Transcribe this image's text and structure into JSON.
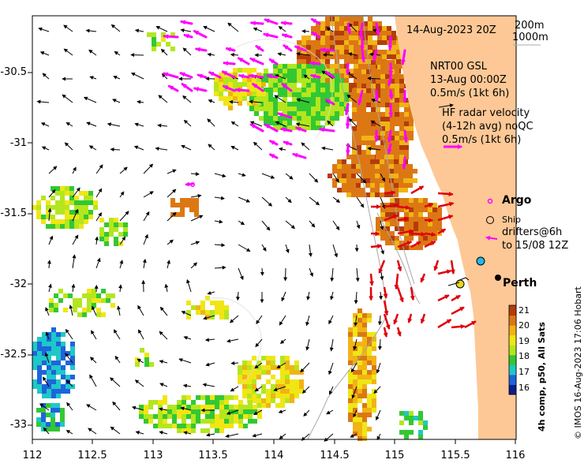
{
  "map": {
    "title": "14-Aug-2023 20Z",
    "contours": [
      "200m",
      "1000m"
    ],
    "model_label": [
      "NRT00 GSL",
      "13-Aug 00:00Z",
      "0.5m/s (1kt 6h)"
    ],
    "hf_label": [
      "HF radar velocity",
      "(4-12h avg) noQC",
      "0.5m/s (1kt 6h)"
    ],
    "argo_label": "Argo",
    "ship_label": "Ship",
    "drifters_label": [
      "drifters@6h",
      "to 15/08 12Z"
    ],
    "city_label": "Perth",
    "credit": "© IMOS 16-Aug-2023 17:06 Hobart",
    "colorbar_title": "4h comp, p50, All Sats",
    "colorbar_ticks": [
      "21",
      "20",
      "19",
      "18",
      "17",
      "16"
    ],
    "x_ticks": [
      "112",
      "112.5",
      "113",
      "113.5",
      "114",
      "114.5",
      "115",
      "115.5",
      "116"
    ],
    "y_ticks": [
      "-30.5",
      "-31",
      "-31.5",
      "-32",
      "-32.5",
      "-33"
    ],
    "land_color": "#fdc896",
    "model_arrow_color": "#000000",
    "hf_arrow_color": "#e0000a",
    "drifter_color": "#ff00ff",
    "sst_colors": [
      "#0a1e8c",
      "#1e64dc",
      "#1ec8c8",
      "#32c832",
      "#b4e61e",
      "#f0e614",
      "#f0b414",
      "#dc7814",
      "#b43c0a"
    ]
  }
}
